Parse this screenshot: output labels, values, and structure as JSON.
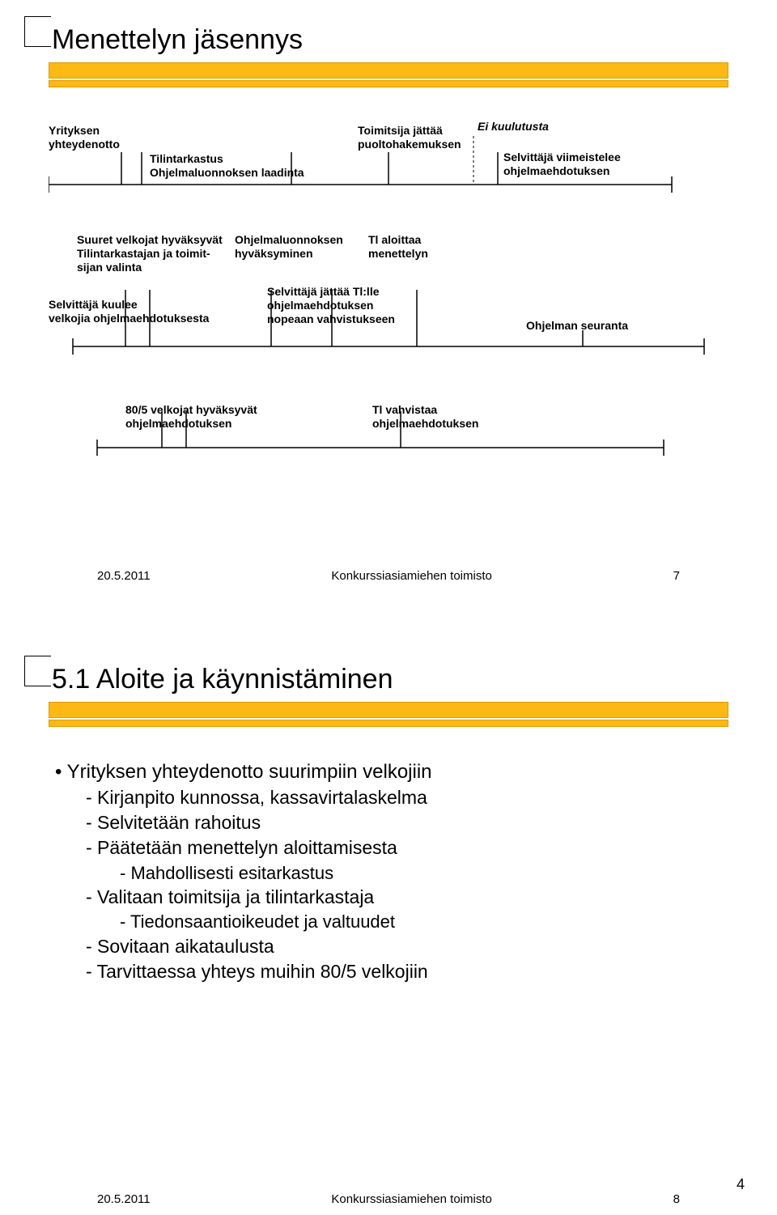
{
  "page_number": "4",
  "colors": {
    "band": "#fdb913",
    "band_border": "#e09b00",
    "line": "#000000",
    "dash": "#000000",
    "text": "#000000"
  },
  "slide1": {
    "title": "Menettelyn jäsennys",
    "footer_date": "20.5.2011",
    "footer_center": "Konkurssiasiamiehen toimisto",
    "footer_page": "7",
    "labels": {
      "l1": "Yrityksen\nyhteydenotto",
      "l2": "Tilintarkastus\nOhjelmaluonnoksen laadinta",
      "l3": "Toimitsija jättää\npuoltohakemuksen",
      "l4": "Ei kuulutusta",
      "l5": "Selvittäjä viimeistelee\nohjelmaehdotuksen",
      "l6": "Suuret velkojat hyväksyvät\nTilintarkastajan ja toimit-\nsijan valinta",
      "l7": "Ohjelmaluonnoksen\nhyväksyminen",
      "l8": "Tl aloittaa\nmenettelyn",
      "l9": "Selvittäjä kuulee\nvelkojia ohjelmaehdotuksesta",
      "l10": "Selvittäjä jättää Tl:lle\nohjelmaehdotuksen\nnopeaan vahvistukseen",
      "l11": "Ohjelman seuranta",
      "l12": "80/5 velkojat hyväksyvät\nohjelmaehdotuksen",
      "l13": "Tl vahvistaa\nohjelmaehdotuksen"
    }
  },
  "slide2": {
    "title": "5.1 Aloite ja käynnistäminen",
    "footer_date": "20.5.2011",
    "footer_center": "Konkurssiasiamiehen toimisto",
    "footer_page": "8",
    "bullets": [
      {
        "level": 1,
        "text": "Yrityksen yhteydenotto suurimpiin velkojiin",
        "marker": "•"
      },
      {
        "level": 2,
        "text": "Kirjanpito kunnossa, kassavirtalaskelma",
        "marker": "-"
      },
      {
        "level": 2,
        "text": "Selvitetään rahoitus",
        "marker": "-"
      },
      {
        "level": 2,
        "text": "Päätetään menettelyn aloittamisesta",
        "marker": "-"
      },
      {
        "level": 3,
        "text": "Mahdollisesti esitarkastus",
        "marker": "-"
      },
      {
        "level": 2,
        "text": "Valitaan toimitsija ja tilintarkastaja",
        "marker": "-"
      },
      {
        "level": 3,
        "text": "Tiedonsaantioikeudet ja valtuudet",
        "marker": "-"
      },
      {
        "level": 2,
        "text": "Sovitaan aikataulusta",
        "marker": "-"
      },
      {
        "level": 2,
        "text": "Tarvittaessa yhteys muihin 80/5 velkojiin",
        "marker": "-"
      }
    ]
  }
}
